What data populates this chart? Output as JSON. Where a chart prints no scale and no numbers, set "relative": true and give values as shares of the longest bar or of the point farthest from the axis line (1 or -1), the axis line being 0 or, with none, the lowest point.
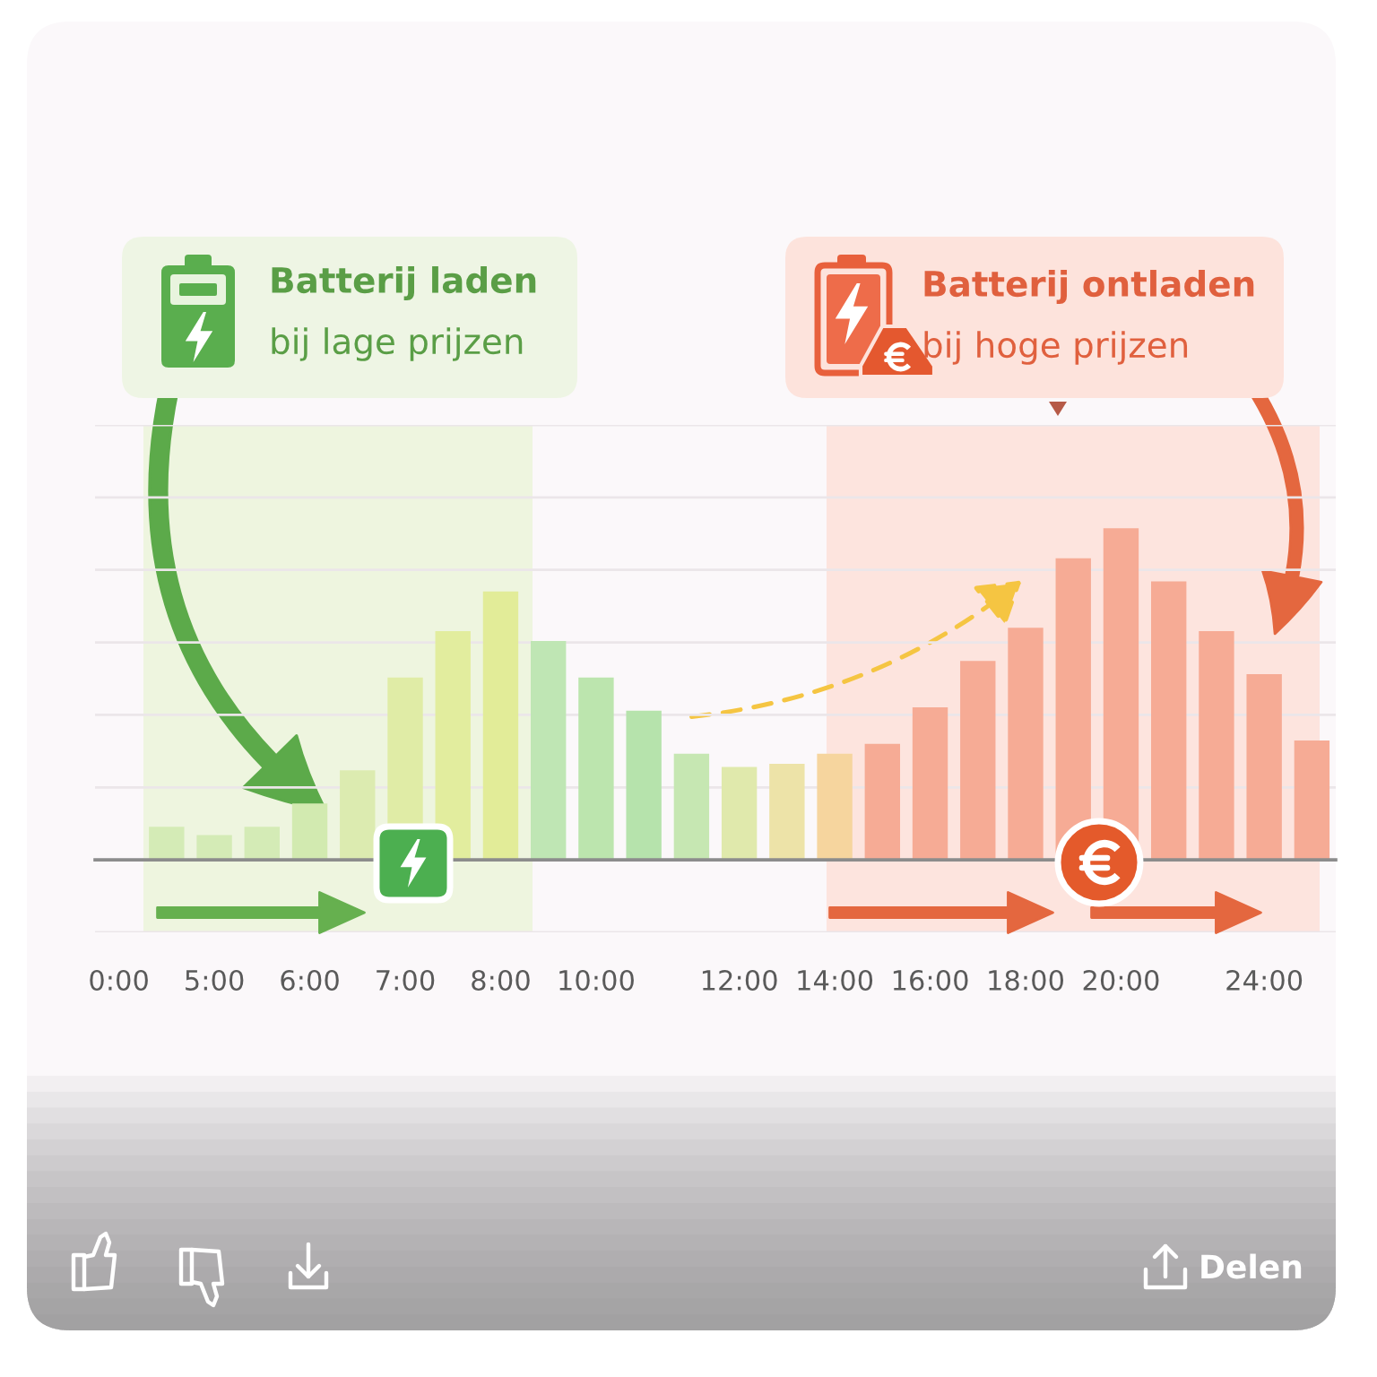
{
  "chart_data": {
    "type": "bar",
    "relative": true,
    "categories": [
      "0:00",
      null,
      "5:00",
      null,
      "6:00",
      null,
      "7:00",
      null,
      "8:00",
      null,
      "10:00",
      null,
      null,
      "12:00",
      null,
      "14:00",
      null,
      "16:00",
      null,
      "18:00",
      null,
      "20:00",
      null,
      null,
      "24:00",
      null
    ],
    "values": [
      null,
      0.1,
      0.075,
      0.1,
      0.17,
      0.27,
      0.55,
      0.69,
      0.81,
      0.66,
      0.55,
      0.45,
      0.32,
      0.28,
      0.29,
      0.32,
      0.35,
      0.46,
      0.6,
      0.7,
      0.91,
      1,
      0.84,
      0.69,
      0.56,
      0.36
    ],
    "colors": [
      null,
      "#d4ebb6",
      "#d4ebb6",
      "#d4ebb6",
      "#d2eab0",
      "#dcebb0",
      "#e0eca6",
      "#e2ed9e",
      "#e2ec98",
      "#bfe6b4",
      "#bce5ae",
      "#b6e3ac",
      "#c6e7b2",
      "#e0e9ac",
      "#ede3a8",
      "#f6d59e",
      "#f6ab95",
      "#f6ab95",
      "#f6ab95",
      "#f6ab95",
      "#f6ab95",
      "#f6ab95",
      "#f6ab95",
      "#f6ab95",
      "#f6ab95",
      "#f6ab95"
    ],
    "grid": "y",
    "tick_labels": "x",
    "annotations": [
      "Batterij laden",
      "bij lage prijzen",
      "Batterij ontladen",
      "bij hoge prijzen",
      "Delen"
    ]
  }
}
